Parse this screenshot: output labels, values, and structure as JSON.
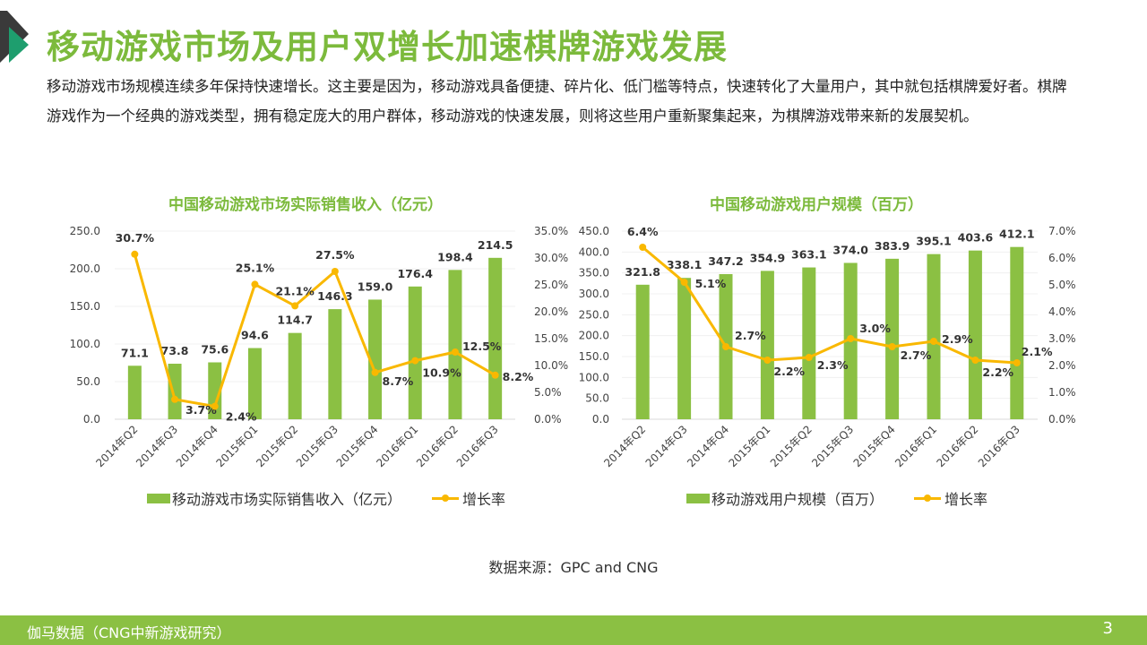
{
  "header": {
    "title": "移动游戏市场及用户双增长加速棋牌游戏发展",
    "intro": "移动游戏市场规模连续多年保持快速增长。这主要是因为，移动游戏具备便捷、碎片化、低门槛等特点，快速转化了大量用户，其中就包括棋牌爱好者。棋牌游戏作为一个经典的游戏类型，拥有稳定庞大的用户群体，移动游戏的快速发展，则将这些用户重新聚集起来，为棋牌游戏带来新的发展契机。"
  },
  "colors": {
    "accent": "#7cba3c",
    "bar": "#8bc043",
    "line": "#f9b800",
    "logo_dark": "#3a3a3a",
    "logo_teal": "#1e9e6e"
  },
  "chart_data": [
    {
      "type": "bar+line",
      "title": "中国移动游戏市场实际销售收入（亿元）",
      "categories": [
        "2014年Q2",
        "2014年Q3",
        "2014年Q4",
        "2015年Q1",
        "2015年Q2",
        "2015年Q3",
        "2015年Q4",
        "2016年Q1",
        "2016年Q2",
        "2016年Q3"
      ],
      "series": [
        {
          "name": "移动游戏市场实际销售收入（亿元）",
          "type": "bar",
          "axis": "left",
          "values": [
            71.1,
            73.8,
            75.6,
            94.6,
            114.7,
            146.3,
            159.0,
            176.4,
            198.4,
            214.5
          ],
          "labels": [
            "71.1",
            "73.8",
            "75.6",
            "94.6",
            "114.7",
            "146.3",
            "159.0",
            "176.4",
            "198.4",
            "214.5"
          ]
        },
        {
          "name": "增长率",
          "type": "line",
          "axis": "right",
          "values": [
            30.7,
            3.7,
            2.4,
            25.1,
            21.1,
            27.5,
            8.7,
            10.9,
            12.5,
            8.2
          ],
          "labels": [
            "30.7%",
            "3.7%",
            "2.4%",
            "25.1%",
            "21.1%",
            "27.5%",
            "8.7%",
            "10.9%",
            "12.5%",
            "8.2%"
          ]
        }
      ],
      "ylim_left": [
        0,
        250
      ],
      "yticks_left": [
        "0.0",
        "50.0",
        "100.0",
        "150.0",
        "200.0",
        "250.0"
      ],
      "ylim_right": [
        0,
        35
      ],
      "yticks_right": [
        "0.0%",
        "5.0%",
        "10.0%",
        "15.0%",
        "20.0%",
        "25.0%",
        "30.0%",
        "35.0%"
      ],
      "grid": true,
      "legend": "bottom"
    },
    {
      "type": "bar+line",
      "title": "中国移动游戏用户规模（百万）",
      "categories": [
        "2014年Q2",
        "2014年Q3",
        "2014年Q4",
        "2015年Q1",
        "2015年Q2",
        "2015年Q3",
        "2015年Q4",
        "2016年Q1",
        "2016年Q2",
        "2016年Q3"
      ],
      "series": [
        {
          "name": "移动游戏用户规模（百万）",
          "type": "bar",
          "axis": "left",
          "values": [
            321.8,
            338.1,
            347.2,
            354.9,
            363.1,
            374.0,
            383.9,
            395.1,
            403.6,
            412.1
          ],
          "labels": [
            "321.8",
            "338.1",
            "347.2",
            "354.9",
            "363.1",
            "374.0",
            "383.9",
            "395.1",
            "403.6",
            "412.1"
          ]
        },
        {
          "name": "增长率",
          "type": "line",
          "axis": "right",
          "values": [
            6.4,
            5.1,
            2.7,
            2.2,
            2.3,
            3.0,
            2.7,
            2.9,
            2.2,
            2.1
          ],
          "labels": [
            "6.4%",
            "5.1%",
            "2.7%",
            "2.2%",
            "2.3%",
            "3.0%",
            "2.7%",
            "2.9%",
            "2.2%",
            "2.1%"
          ]
        }
      ],
      "ylim_left": [
        0,
        450
      ],
      "yticks_left": [
        "0.0",
        "50.0",
        "100.0",
        "150.0",
        "200.0",
        "250.0",
        "300.0",
        "350.0",
        "400.0",
        "450.0"
      ],
      "ylim_right": [
        0,
        7
      ],
      "yticks_right": [
        "0.0%",
        "1.0%",
        "2.0%",
        "3.0%",
        "4.0%",
        "5.0%",
        "6.0%",
        "7.0%"
      ],
      "grid": true,
      "legend": "bottom"
    }
  ],
  "source": "数据来源：GPC and CNG",
  "footer": {
    "text": "伽马数据（CNG中新游戏研究）",
    "page": "3"
  }
}
